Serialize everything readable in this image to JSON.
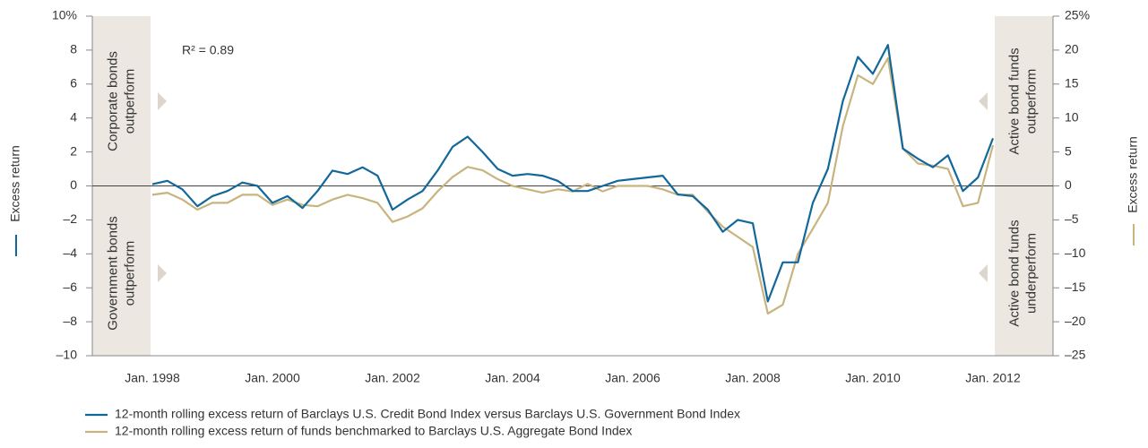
{
  "chart_data": {
    "type": "line",
    "ylabel": "Excess return",
    "y2label": "Excess return",
    "annotations": {
      "r_squared": "R² = 0.89",
      "left_top": [
        "Corporate bonds",
        "outperform"
      ],
      "left_bottom": [
        "Government bonds",
        "outperform"
      ],
      "right_top": [
        "Active bond funds",
        "outperform"
      ],
      "right_bottom": [
        "Active bond funds",
        "underperform"
      ]
    },
    "x": [
      "1998-01",
      "1998-04",
      "1998-07",
      "1998-10",
      "1999-01",
      "1999-04",
      "1999-07",
      "1999-10",
      "2000-01",
      "2000-04",
      "2000-07",
      "2000-10",
      "2001-01",
      "2001-04",
      "2001-07",
      "2001-10",
      "2002-01",
      "2002-04",
      "2002-07",
      "2002-10",
      "2003-01",
      "2003-04",
      "2003-07",
      "2003-10",
      "2004-01",
      "2004-04",
      "2004-07",
      "2004-10",
      "2005-01",
      "2005-04",
      "2005-07",
      "2005-10",
      "2006-01",
      "2006-04",
      "2006-07",
      "2006-10",
      "2007-01",
      "2007-04",
      "2007-07",
      "2007-10",
      "2008-01",
      "2008-04",
      "2008-07",
      "2008-10",
      "2009-01",
      "2009-04",
      "2009-07",
      "2009-10",
      "2010-01",
      "2010-04",
      "2010-07",
      "2010-10",
      "2011-01",
      "2011-04",
      "2011-07",
      "2011-10",
      "2012-01"
    ],
    "series": [
      {
        "name": "12-month rolling excess return of Barclays U.S. Credit Bond Index versus Barclays U.S. Government Bond Index",
        "color": "#12689a",
        "values": [
          0.1,
          0.3,
          -0.2,
          -1.2,
          -0.6,
          -0.3,
          0.2,
          0.0,
          -1.0,
          -0.6,
          -1.3,
          -0.3,
          0.9,
          0.7,
          1.1,
          0.6,
          -1.4,
          -0.8,
          -0.3,
          0.9,
          2.3,
          2.9,
          2.0,
          1.0,
          0.6,
          0.7,
          0.6,
          0.3,
          -0.3,
          -0.3,
          0.0,
          0.3,
          0.4,
          0.5,
          0.6,
          -0.5,
          -0.6,
          -1.4,
          -2.7,
          -2.0,
          -2.2,
          -6.8,
          -4.5,
          -4.5,
          -1.0,
          1.0,
          5.0,
          7.6,
          6.6,
          8.3,
          2.2,
          1.6,
          1.1,
          1.8,
          -0.3,
          0.5,
          2.8
        ]
      },
      {
        "name": "12-month rolling excess return of funds benchmarked to Barclays U.S. Aggregate Bond Index",
        "color": "#c8b47f",
        "axis": "y2",
        "values": [
          -1.3,
          -1.0,
          -2.0,
          -3.5,
          -2.5,
          -2.5,
          -1.3,
          -1.3,
          -2.8,
          -2.0,
          -2.8,
          -3.0,
          -2.0,
          -1.3,
          -1.8,
          -2.5,
          -5.3,
          -4.5,
          -3.3,
          -0.8,
          1.3,
          2.8,
          2.3,
          1.0,
          0,
          -0.5,
          -1.0,
          -0.5,
          -0.8,
          0.3,
          -0.8,
          0,
          0,
          0,
          -0.5,
          -1.3,
          -1.3,
          -3.8,
          -6.0,
          -7.5,
          -9.0,
          -18.8,
          -17.5,
          -10.0,
          -6.3,
          -2.5,
          8.8,
          16.3,
          15.0,
          18.8,
          5.5,
          3.3,
          3.0,
          2.5,
          -3.0,
          -2.5,
          6.0
        ]
      }
    ],
    "xlim": [
      "1997-01",
      "2013-01"
    ],
    "xticks": [
      {
        "value": "1998-01",
        "label": "Jan. 1998"
      },
      {
        "value": "2000-01",
        "label": "Jan. 2000"
      },
      {
        "value": "2002-01",
        "label": "Jan. 2002"
      },
      {
        "value": "2004-01",
        "label": "Jan. 2004"
      },
      {
        "value": "2006-01",
        "label": "Jan. 2006"
      },
      {
        "value": "2008-01",
        "label": "Jan. 2008"
      },
      {
        "value": "2010-01",
        "label": "Jan. 2010"
      },
      {
        "value": "2012-01",
        "label": "Jan. 2012"
      }
    ],
    "ylim": [
      -10,
      10
    ],
    "yticks": [
      {
        "value": 10,
        "label": "10%"
      },
      8,
      6,
      4,
      2,
      0,
      {
        "value": -2,
        "label": "–2"
      },
      {
        "value": -4,
        "label": "–4"
      },
      {
        "value": -6,
        "label": "–6"
      },
      {
        "value": -8,
        "label": "–8"
      },
      {
        "value": -10,
        "label": "–10"
      }
    ],
    "y2lim": [
      -25,
      25
    ],
    "y2ticks": [
      {
        "value": 25,
        "label": "25%"
      },
      20,
      15,
      10,
      5,
      0,
      {
        "value": -5,
        "label": "–5"
      },
      {
        "value": -10,
        "label": "–10"
      },
      {
        "value": -15,
        "label": "–15"
      },
      {
        "value": -20,
        "label": "–20"
      },
      {
        "value": -25,
        "label": "–25"
      }
    ],
    "zero_line": true
  }
}
